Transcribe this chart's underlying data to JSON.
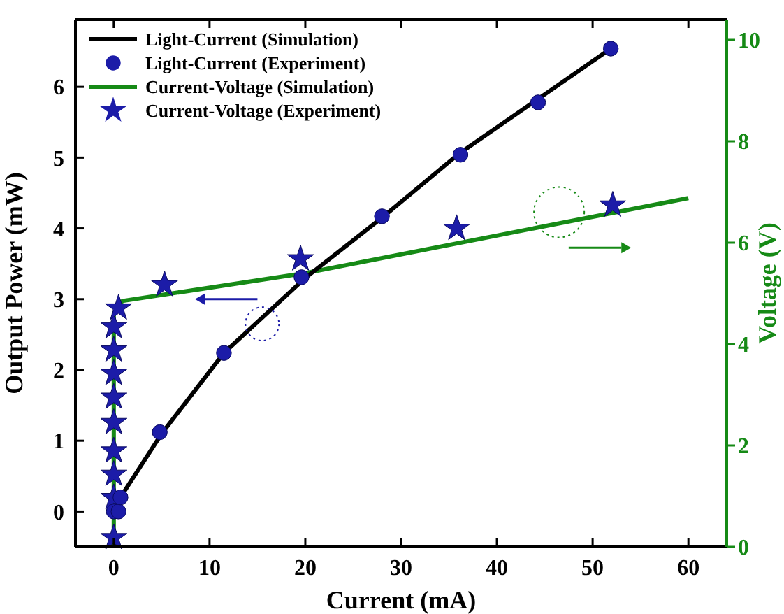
{
  "chart_data": {
    "type": "line",
    "xlabel": "Current (mA)",
    "ylabel": "Output Power (mW)",
    "y2label": "Voltage (V)",
    "xlim": [
      -4,
      64
    ],
    "xticks": [
      0,
      10,
      20,
      30,
      40,
      50,
      60
    ],
    "ylim": [
      -0.5,
      6.95
    ],
    "yticks": [
      0,
      1,
      2,
      3,
      4,
      5,
      6
    ],
    "y2lim": [
      0,
      10.4
    ],
    "y2ticks": [
      0,
      2,
      4,
      6,
      8,
      10
    ],
    "legend": "top left",
    "grid": false,
    "series": [
      {
        "name": "Light-Current (Simulation)",
        "color": "#000000",
        "marker": "none",
        "x": [
          0.7,
          5,
          11.5,
          20,
          28,
          36,
          44,
          52
        ],
        "values": [
          0.2,
          1.1,
          2.24,
          3.3,
          4.15,
          5.05,
          5.8,
          6.55
        ]
      },
      {
        "name": "Light-Current (Experiment)",
        "type": "scatter",
        "color": "#1c1ca8",
        "marker": "circle",
        "x": [
          0,
          0.5,
          0.7,
          4.8,
          11.5,
          19.6,
          28.0,
          36.2,
          44.3,
          51.9
        ],
        "values": [
          0,
          0,
          0.2,
          1.12,
          2.24,
          3.31,
          4.17,
          5.04,
          5.78,
          6.54
        ]
      },
      {
        "name": "Current-Voltage (Simulation)",
        "axis": "y2",
        "color": "#168a16",
        "marker": "none",
        "x": [
          0,
          0,
          0.9,
          20,
          60
        ],
        "values": [
          0,
          4.6,
          4.85,
          5.4,
          6.88
        ]
      },
      {
        "name": "Current-Voltage (Experiment)",
        "type": "scatter",
        "axis": "y2",
        "color": "#1c1ca8",
        "marker": "star",
        "x": [
          0,
          0,
          0,
          0,
          0,
          0,
          0,
          0,
          0,
          0.5,
          5.3,
          19.5,
          35.8,
          52.1
        ],
        "values": [
          0.18,
          0.97,
          1.43,
          1.89,
          2.45,
          2.95,
          3.42,
          3.88,
          4.34,
          4.71,
          5.17,
          5.68,
          6.28,
          6.74
        ]
      }
    ]
  }
}
